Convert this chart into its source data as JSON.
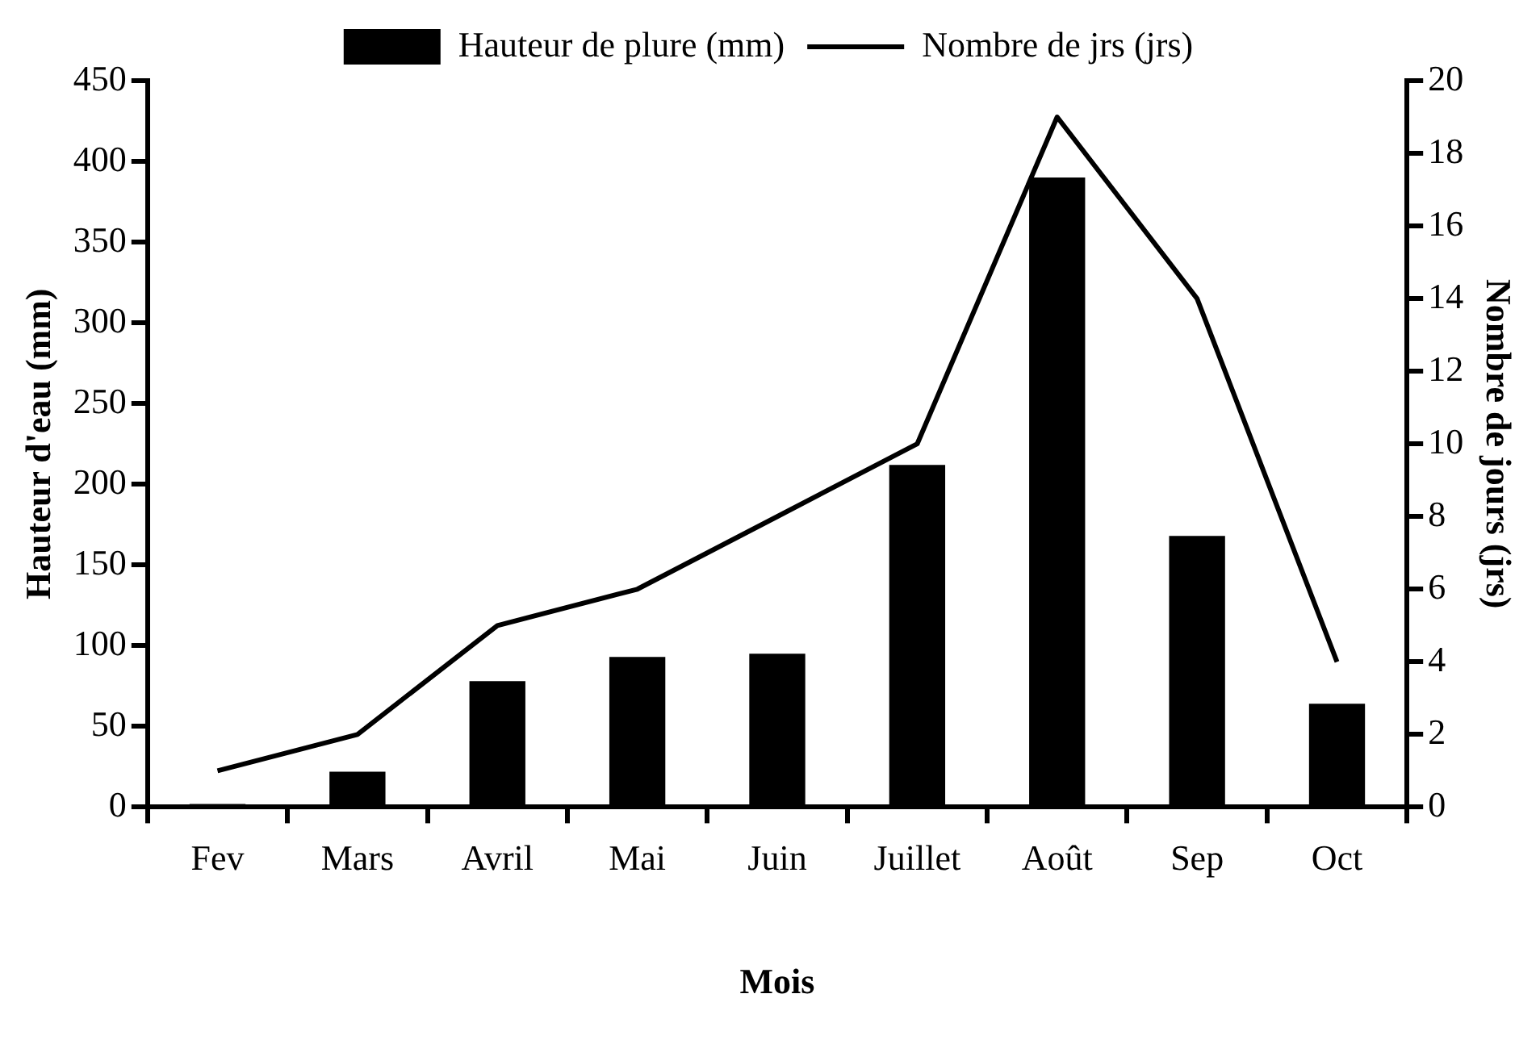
{
  "chart_data": {
    "type": "bar",
    "xlabel": "Mois",
    "ylabel": "Hauteur d'eau (mm)",
    "y2label": "Nombre de jours (jrs)",
    "categories": [
      "Fev",
      "Mars",
      "Avril",
      "Mai",
      "Juin",
      "Juillet",
      "Août",
      "Sep",
      "Oct"
    ],
    "series": [
      {
        "name": "Hauteur de plure (mm)",
        "color": "#000000",
        "values": [
          2,
          22,
          78,
          93,
          95,
          212,
          390,
          168,
          64
        ]
      },
      {
        "name": "Nombre de jrs (jrs)",
        "type": "line",
        "axis": "y2",
        "color": "#000000",
        "marker": "none",
        "values": [
          1,
          2,
          5,
          6,
          8,
          10,
          19,
          14,
          4
        ]
      }
    ],
    "ylim": [
      0,
      450
    ],
    "yticks": [
      0,
      50,
      100,
      150,
      200,
      250,
      300,
      350,
      400,
      450
    ],
    "y2lim": [
      0,
      20
    ],
    "y2ticks": [
      0,
      2,
      4,
      6,
      8,
      10,
      12,
      14,
      16,
      18,
      20
    ],
    "grid": false,
    "legend": "top"
  }
}
